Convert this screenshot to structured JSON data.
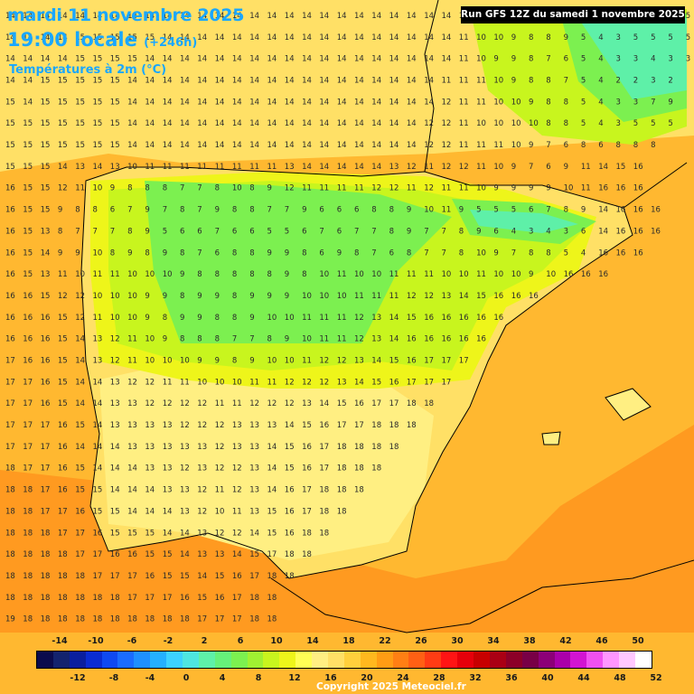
{
  "header": {
    "date_line": "mardi 11 novembre 2025",
    "time": "19:00 locale",
    "lead": "(+246h)",
    "variable": "Températures à 2m (°C)"
  },
  "run_info": "Run GFS 12Z du samedi 1 novembre 2025",
  "copyright": "Copyright 2025 Meteociel.fr",
  "colorbar": {
    "top_labels": [
      "-14",
      "-10",
      "-6",
      "-2",
      "2",
      "6",
      "10",
      "14",
      "18",
      "22",
      "26",
      "30",
      "34",
      "38",
      "42",
      "46",
      "50"
    ],
    "bottom_labels": [
      "-12",
      "-8",
      "-4",
      "0",
      "4",
      "8",
      "12",
      "16",
      "20",
      "24",
      "28",
      "32",
      "36",
      "40",
      "44",
      "48",
      "52"
    ],
    "colors": [
      "#0b0b4d",
      "#13236e",
      "#0a1f9e",
      "#0a2cd2",
      "#0f49f2",
      "#1a6cff",
      "#1e90ff",
      "#24b0ff",
      "#3cd2ff",
      "#4ee6e0",
      "#5ef0a8",
      "#66f07a",
      "#7cf050",
      "#a0f032",
      "#c8f51e",
      "#eef51a",
      "#ffff55",
      "#ffef82",
      "#ffe066",
      "#ffd03c",
      "#ffb81e",
      "#ff9c14",
      "#ff7f14",
      "#ff6014",
      "#ff3c14",
      "#ff1414",
      "#e6000a",
      "#c80000",
      "#aa0014",
      "#8c0028",
      "#780046",
      "#8c0078",
      "#aa00aa",
      "#d214d2",
      "#f050f0",
      "#ff96ff",
      "#ffc8ff",
      "#ffffff"
    ]
  },
  "map": {
    "field_colors": {
      "sea": "#ffb830",
      "warm_sea": "#ff9a20",
      "land_mild": "#ffe066",
      "land_light": "#ffef82",
      "land_yellow": "#eef51a",
      "land_lime": "#c8f51e",
      "land_green": "#7cf050",
      "land_cool": "#5ef0a8",
      "land_cold": "#3cd2ff"
    },
    "grid_rows": [
      "14 14 14 14 14 14 14 14 14 14 14 14 14 14 14 14 14 14 14 14 14 14 14 14 14 14 11 10 10 9 9 8 8 5 5 4 3 5 5 5",
      "14 14 14 14 15 15 15 15 15 14 14 14 14 14 14 14 14 14 14 14 14 14 14 14 14 14 11 10 10 9 8 8 9 5 4 3 5 5 5 5",
      "14 14 14 14 15 15 15 15 14 14 14 14 14 14 14 14 14 14 14 14 14 14 14 14 14 14 11 10 9 9 8 7 6 5 4 3 3 4 3 3",
      "14 14 15 15 15 15 15 14 14 14 14 14 14 14 14 14 14 14 14 14 14 14 14 14 14 11 11 11 10 9 8 8 7 5 4 2 2 3 2",
      "15 14 15 15 15 15 15 14 14 14 14 14 14 14 14 14 14 14 14 14 14 14 14 14 14 12 11 11 10 10 9 8 8 5 4 3 3 7 9",
      "15 15 15 15 15 15 15 14 14 14 14 14 14 14 14 14 14 14 14 14 14 14 14 14 12 12 11 10 10 10 10 8 8 5 4 3 5 5 5",
      "15 15 15 15 15 15 15 14 14 14 14 14 14 14 14 14 14 14 14 14 14 14 14 14 12 12 11 11 11 10 9 7 6 8 6 8 8 8",
      "15 15 15 14 13 14 13 10 11 11 11 11 11 11 11 11 13 14 14 14 14 14 13 12 11 12 12 11 10 9 7 6 9 11 14 15 16",
      "16 15 15 12 11 10 9 8 8 8 7 7 8 10 8 9 12 11 11 11 11 12 12 11 12 11 11 10 9 9 9 9 10 11 16 16 16",
      "16 15 15 9 8 8 6 7 9 7 8 7 9 8 8 7 7 9 6 6 6 8 8 9 10 11 9 5 5 5 6 7 8 9 14 16 16 16",
      "16 15 13 8 7 7 7 8 9 5 6 6 7 6 6 5 5 6 7 6 7 7 8 9 7 7 8 9 6 4 3 4 3 6 14 16 16 16",
      "16 15 14 9 9 10 8 9 8 9 8 7 6 8 8 9 9 8 6 9 8 7 6 8 7 7 8 10 9 7 8 8 5 4 16 16 16",
      "16 15 13 11 10 11 11 10 10 10 9 8 8 8 8 8 9 8 10 11 10 10 11 11 11 10 10 11 10 10 9 10 16 16 16",
      "16 16 15 12 12 10 10 10 9 9 8 9 9 8 9 9 9 10 10 10 11 11 11 12 12 13 14 15 16 16 16",
      "16 16 16 15 12 11 10 10 9 8 9 9 8 8 9 10 10 11 11 11 12 13 14 15 16 16 16 16 16",
      "16 16 16 15 14 13 12 11 10 9 8 8 8 7 7 8 9 10 11 11 12 13 14 16 16 16 16 16",
      "17 16 16 15 14 13 12 11 10 10 10 9 9 8 9 10 10 11 12 12 13 14 15 16 17 17 17",
      "17 17 16 15 14 14 13 12 12 11 11 10 10 10 11 11 12 12 12 13 14 15 16 17 17 17",
      "17 17 16 15 14 14 13 13 12 12 12 12 11 11 12 12 12 13 14 15 16 17 17 18 18",
      "17 17 17 16 15 14 13 13 13 13 12 12 12 13 13 13 14 15 16 17 17 18 18 18",
      "17 17 17 16 14 14 14 13 13 13 13 13 12 13 13 14 15 16 17 18 18 18 18",
      "18 17 17 16 15 14 14 14 13 13 12 13 12 12 13 14 15 16 17 18 18 18",
      "18 18 17 16 15 15 14 14 14 13 13 12 11 12 13 14 16 17 18 18 18",
      "18 18 17 17 16 15 15 14 14 14 13 12 10 11 13 15 16 17 18 18",
      "18 18 18 17 17 16 15 15 15 14 14 13 12 12 14 15 16 18 18",
      "18 18 18 18 17 17 16 16 15 15 14 13 13 14 15 17 18 18",
      "18 18 18 18 18 17 17 17 16 15 15 14 15 16 17 18 18",
      "18 18 18 18 18 18 18 17 17 17 16 15 16 17 18 18",
      "19 18 18 18 18 18 18 18 18 18 18 17 17 17 18 18",
      "19 19 19 19 18 18 18 18 18 18 18 18 18 18 18",
      "19 19 19 19 19 19 19 19 19 19 19 19 19 19"
    ]
  }
}
